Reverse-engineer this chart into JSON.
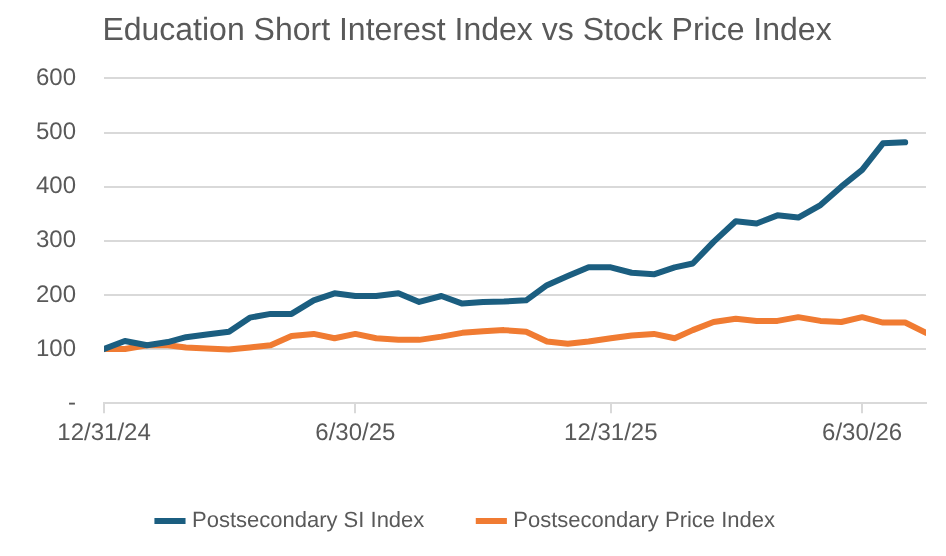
{
  "chart_data": {
    "type": "line",
    "title": "Education Short Interest Index vs Stock Price Index",
    "x": [
      "2024-12-31",
      "2025-01-15",
      "2025-01-31",
      "2025-02-15",
      "2025-02-28",
      "2025-03-15",
      "2025-03-31",
      "2025-04-15",
      "2025-04-30",
      "2025-05-15",
      "2025-05-31",
      "2025-06-15",
      "2025-06-30",
      "2025-07-15",
      "2025-07-31",
      "2025-08-15",
      "2025-08-31",
      "2025-09-15",
      "2025-09-30",
      "2025-10-15",
      "2025-10-31",
      "2025-11-15",
      "2025-11-30",
      "2025-12-15",
      "2025-12-31",
      "2026-01-15",
      "2026-01-31",
      "2026-02-15",
      "2026-02-28",
      "2026-03-15",
      "2026-03-31",
      "2026-04-15",
      "2026-04-30",
      "2026-05-15",
      "2026-05-31",
      "2026-06-15",
      "2026-06-30",
      "2026-07-15",
      "2026-07-31",
      "2026-08-15"
    ],
    "series": [
      {
        "name": "Postsecondary SI Index",
        "color": "#1b5e80",
        "values": [
          100,
          115,
          107,
          113,
          122,
          127,
          132,
          158,
          165,
          165,
          190,
          203,
          198,
          198,
          203,
          187,
          198,
          184,
          187,
          188,
          190,
          218,
          235,
          251,
          251,
          241,
          238,
          251,
          258,
          298,
          336,
          332,
          347,
          343,
          366,
          400,
          431,
          480,
          482,
          null
        ]
      },
      {
        "name": "Postsecondary Price Index",
        "color": "#f07b32",
        "values": [
          100,
          100,
          107,
          107,
          103,
          101,
          99,
          103,
          107,
          124,
          128,
          120,
          128,
          120,
          117,
          117,
          123,
          130,
          133,
          135,
          132,
          114,
          110,
          114,
          120,
          125,
          128,
          120,
          135,
          150,
          156,
          152,
          152,
          159,
          152,
          150,
          159,
          149,
          149,
          130
        ]
      }
    ],
    "xlim": [
      "2024-12-31",
      "2026-08-15"
    ],
    "xticks": [
      {
        "value": "2024-12-31",
        "label": "12/31/24"
      },
      {
        "value": "2025-06-30",
        "label": "6/30/25"
      },
      {
        "value": "2025-12-31",
        "label": "12/31/25"
      },
      {
        "value": "2026-06-30",
        "label": "6/30/26"
      }
    ],
    "ylim": [
      0,
      600
    ],
    "yticks": [
      {
        "value": 0,
        "label": "-"
      },
      100,
      200,
      300,
      400,
      500,
      600
    ],
    "grid": "y",
    "legend": "bottom",
    "marker": "none",
    "line_style": "solid"
  }
}
